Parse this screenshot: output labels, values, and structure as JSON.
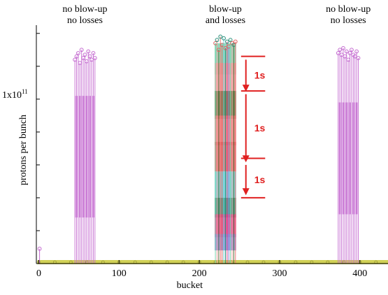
{
  "chart_data": {
    "type": "line",
    "title": "",
    "xlabel": "bucket",
    "ylabel": "protons per bunch",
    "xlim": [
      -3,
      435
    ],
    "ylim": [
      0,
      1.45
    ],
    "x_ticks": [
      0,
      100,
      200,
      300,
      400
    ],
    "x_tick_labels": [
      "0",
      "100",
      "200",
      "300",
      "400"
    ],
    "y_tick_label": "1x10",
    "y_tick_exponent": "11",
    "y_tick_label_value": 1.0,
    "y_minor_ticks": [
      0.2,
      0.4,
      0.6,
      0.8,
      1.2,
      1.4
    ],
    "grid": false,
    "groups": [
      {
        "label_lines": [
          "no blow-up",
          "no losses"
        ],
        "x_start": 45,
        "x_end": 70,
        "color": "#c46ad0",
        "peak_values": [
          1.24,
          1.26,
          1.28,
          1.22,
          1.3,
          1.25,
          1.27,
          1.23,
          1.29,
          1.26,
          1.24,
          1.28,
          1.25
        ],
        "band_top": 1.02,
        "band_bottom": 0.28
      },
      {
        "label_lines": [
          "blow-up",
          "and losses"
        ],
        "x_start": 220,
        "x_end": 245,
        "peak_values": [
          1.34,
          1.36,
          1.3,
          1.38,
          1.33,
          1.37,
          1.31,
          1.35,
          1.32,
          1.36,
          1.34,
          1.33,
          1.35
        ],
        "layers": [
          {
            "color": "#7fd4b0",
            "top": 1.34,
            "bottom": 1.15
          },
          {
            "color": "#f0a0a0",
            "top": 1.22,
            "bottom": 1.05
          },
          {
            "color": "#5a6e3a",
            "top": 1.05,
            "bottom": 0.88
          },
          {
            "color": "#f07878",
            "top": 0.9,
            "bottom": 0.72
          },
          {
            "color": "#e06060",
            "top": 0.74,
            "bottom": 0.56
          },
          {
            "color": "#70d0d8",
            "top": 0.56,
            "bottom": 0.4
          },
          {
            "color": "#2a8f7a",
            "top": 0.4,
            "bottom": 0.28
          },
          {
            "color": "#e0408a",
            "top": 0.3,
            "bottom": 0.16
          },
          {
            "color": "#8a8ad8",
            "top": 0.18,
            "bottom": 0.08
          }
        ]
      },
      {
        "label_lines": [
          "no blow-up",
          "no losses"
        ],
        "x_start": 373,
        "x_end": 398,
        "color": "#c46ad0",
        "peak_values": [
          1.28,
          1.3,
          1.27,
          1.31,
          1.26,
          1.29,
          1.24,
          1.28,
          1.3,
          1.27,
          1.26,
          1.29,
          1.25
        ],
        "band_top": 0.98,
        "band_bottom": 0.3
      }
    ],
    "single_bunch": {
      "x": 1,
      "value": 0.09,
      "color": "#c46ad0"
    },
    "baseline": {
      "value": 0.005,
      "color": "#cccc44"
    },
    "baseline_markers_x": [
      0,
      20,
      40,
      60,
      80,
      100,
      120,
      140,
      160,
      180,
      200,
      220,
      240,
      260,
      280,
      300,
      320,
      340,
      360,
      380,
      400,
      420
    ],
    "annotations": [
      {
        "label": "1s",
        "y_from": 1.24,
        "y_to": 1.05
      },
      {
        "label": "1s",
        "y_from": 1.03,
        "y_to": 0.62
      },
      {
        "label": "1s",
        "y_from": 0.6,
        "y_to": 0.42
      }
    ],
    "annotation_lines": [
      1.26,
      1.05,
      0.64,
      0.4
    ],
    "annotation_color": "#e02020"
  }
}
